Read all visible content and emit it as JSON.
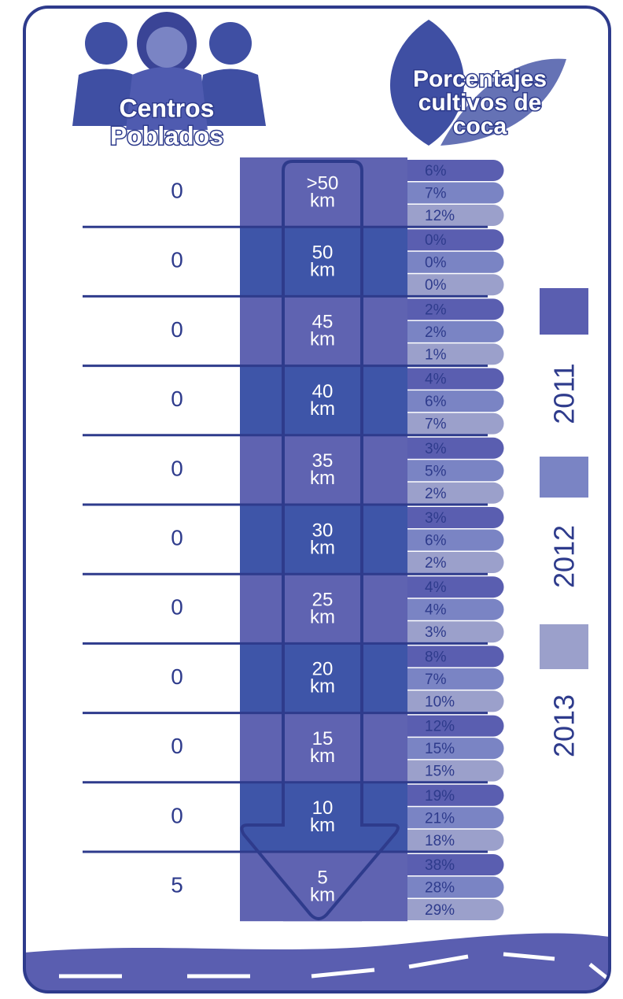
{
  "header": {
    "people_label": [
      "Centros",
      "Poblados"
    ],
    "coca_label": [
      "Porcentajes",
      "cultivos de",
      "coca"
    ]
  },
  "legend": [
    "2011",
    "2012",
    "2013"
  ],
  "rows": [
    {
      "centros": "0",
      "distance": [
        ">50",
        "km"
      ],
      "percentages": [
        "6%",
        "7%",
        "12%"
      ]
    },
    {
      "centros": "0",
      "distance": [
        "50",
        "km"
      ],
      "percentages": [
        "0%",
        "0%",
        "0%"
      ]
    },
    {
      "centros": "0",
      "distance": [
        "45",
        "km"
      ],
      "percentages": [
        "2%",
        "2%",
        "1%"
      ]
    },
    {
      "centros": "0",
      "distance": [
        "40",
        "km"
      ],
      "percentages": [
        "4%",
        "6%",
        "7%"
      ]
    },
    {
      "centros": "0",
      "distance": [
        "35",
        "km"
      ],
      "percentages": [
        "3%",
        "5%",
        "2%"
      ]
    },
    {
      "centros": "0",
      "distance": [
        "30",
        "km"
      ],
      "percentages": [
        "3%",
        "6%",
        "2%"
      ]
    },
    {
      "centros": "0",
      "distance": [
        "25",
        "km"
      ],
      "percentages": [
        "4%",
        "4%",
        "3%"
      ]
    },
    {
      "centros": "0",
      "distance": [
        "20",
        "km"
      ],
      "percentages": [
        "8%",
        "7%",
        "10%"
      ]
    },
    {
      "centros": "0",
      "distance": [
        "15",
        "km"
      ],
      "percentages": [
        "12%",
        "15%",
        "15%"
      ]
    },
    {
      "centros": "0",
      "distance": [
        "10",
        "km"
      ],
      "percentages": [
        "19%",
        "21%",
        "18%"
      ]
    },
    {
      "centros": "5",
      "distance": [
        "5",
        "km"
      ],
      "percentages": [
        "38%",
        "28%",
        "29%"
      ]
    }
  ]
}
